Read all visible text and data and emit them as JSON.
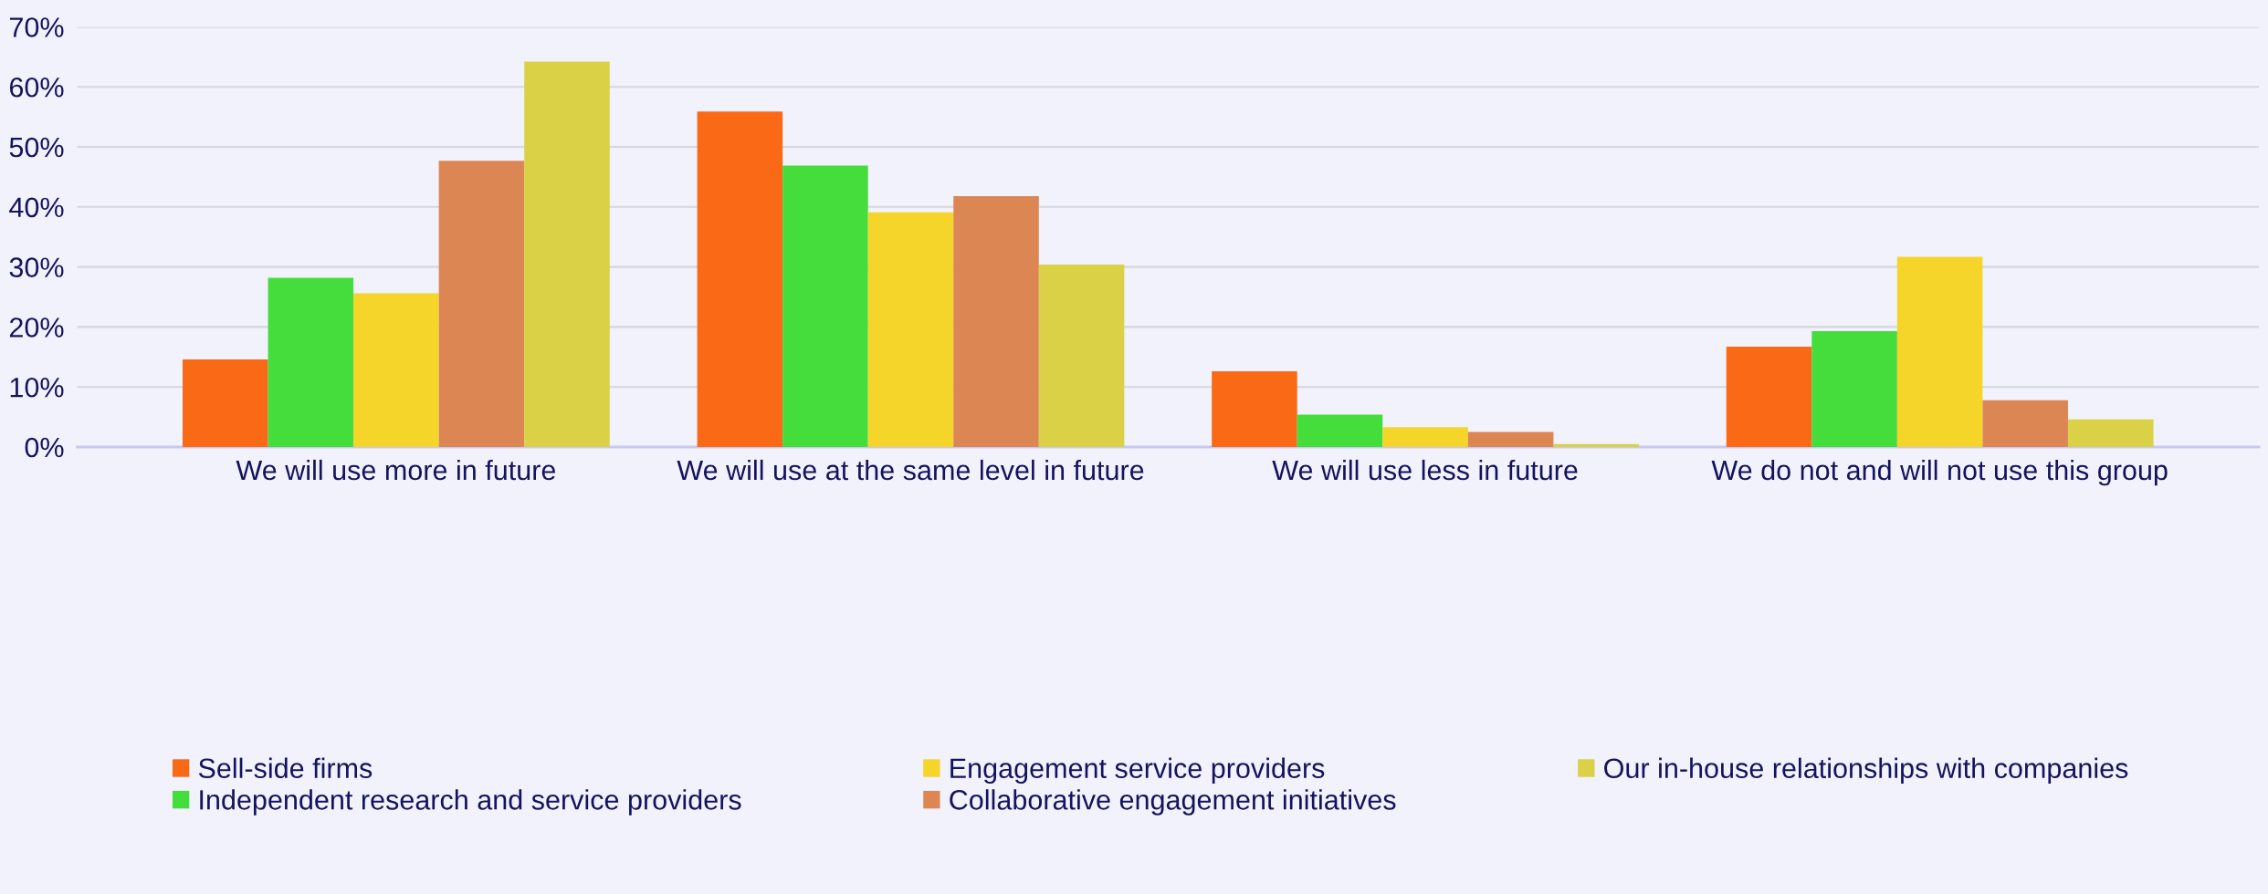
{
  "chart_data": {
    "type": "bar",
    "categories": [
      "We will use more in future",
      "We will use at the same level in future",
      "We will use less in future",
      "We do not and will not use this group"
    ],
    "series": [
      {
        "name": "Sell-side firms",
        "color": "#fa6a16",
        "values": [
          14.6,
          55.9,
          12.6,
          16.7
        ]
      },
      {
        "name": "Independent research and service providers",
        "color": "#44dd3c",
        "values": [
          28.2,
          46.9,
          5.4,
          19.3
        ]
      },
      {
        "name": "Engagement service providers",
        "color": "#f5d52a",
        "values": [
          25.6,
          39.1,
          3.3,
          31.7
        ]
      },
      {
        "name": "Collaborative engagement initiatives",
        "color": "#dc8654",
        "values": [
          47.7,
          41.8,
          2.5,
          7.8
        ]
      },
      {
        "name": "Our in-house relationships with companies",
        "color": "#dbd146",
        "values": [
          64.2,
          30.4,
          0.5,
          4.6
        ]
      }
    ],
    "ylim": [
      0,
      70
    ],
    "yticks": [
      {
        "value": 0,
        "label": "0%"
      },
      {
        "value": 10,
        "label": "10%"
      },
      {
        "value": 20,
        "label": "20%"
      },
      {
        "value": 30,
        "label": "30%"
      },
      {
        "value": 40,
        "label": "40%"
      },
      {
        "value": 50,
        "label": "50%"
      },
      {
        "value": 60,
        "label": "60%"
      },
      {
        "value": 70,
        "label": "70%"
      }
    ],
    "grid": "y",
    "legend": "bottom"
  }
}
